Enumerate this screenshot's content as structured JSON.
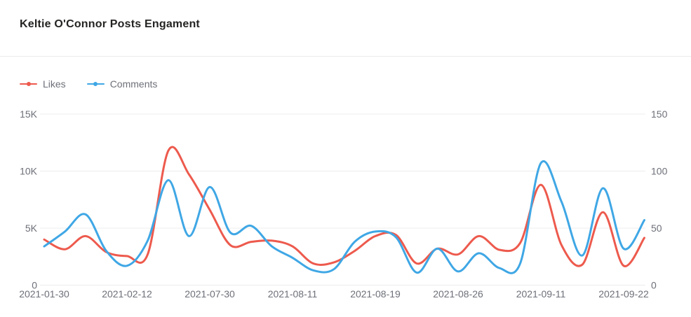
{
  "header": {
    "title": "Keltie O'Connor Posts Engament"
  },
  "legend": {
    "items": [
      {
        "label": "Likes",
        "color": "#ed5a4d"
      },
      {
        "label": "Comments",
        "color": "#3fa7e5"
      }
    ]
  },
  "chart_data": {
    "type": "line",
    "title": "Keltie O'Connor Posts Engament",
    "smooth": true,
    "grid": true,
    "legend_position": "top-left",
    "x_tick_labels": [
      "2021-01-30",
      "2021-02-12",
      "2021-07-30",
      "2021-08-11",
      "2021-08-19",
      "2021-08-26",
      "2021-09-11",
      "2021-09-22"
    ],
    "x_tick_indices": [
      0,
      4,
      8,
      12,
      16,
      20,
      24,
      28
    ],
    "num_points": 30,
    "left_axis": {
      "label": "Likes",
      "ticks": [
        "0",
        "5K",
        "10K",
        "15K"
      ],
      "min": 0,
      "max": 15000
    },
    "right_axis": {
      "label": "Comments",
      "ticks": [
        "0",
        "50",
        "100",
        "150"
      ],
      "min": 0,
      "max": 150
    },
    "series": [
      {
        "name": "Likes",
        "axis": "left",
        "color": "#ed5a4d",
        "values": [
          4000,
          3150,
          4300,
          2900,
          2550,
          2700,
          11800,
          9700,
          6600,
          3500,
          3800,
          3900,
          3400,
          1900,
          2000,
          3000,
          4300,
          4400,
          1900,
          3200,
          2700,
          4300,
          3100,
          3700,
          8800,
          3500,
          1800,
          6400,
          1700,
          4150
        ]
      },
      {
        "name": "Comments",
        "axis": "right",
        "color": "#3fa7e5",
        "values": [
          34,
          47,
          62,
          30,
          17,
          39,
          92,
          43,
          86,
          46,
          52,
          34,
          24,
          13,
          14,
          38,
          47,
          42,
          11,
          32,
          12,
          28,
          15,
          19,
          107,
          73,
          26,
          85,
          32,
          57
        ]
      }
    ],
    "axis_label_color": "#6e7079",
    "gridline_color": "#ececec"
  }
}
